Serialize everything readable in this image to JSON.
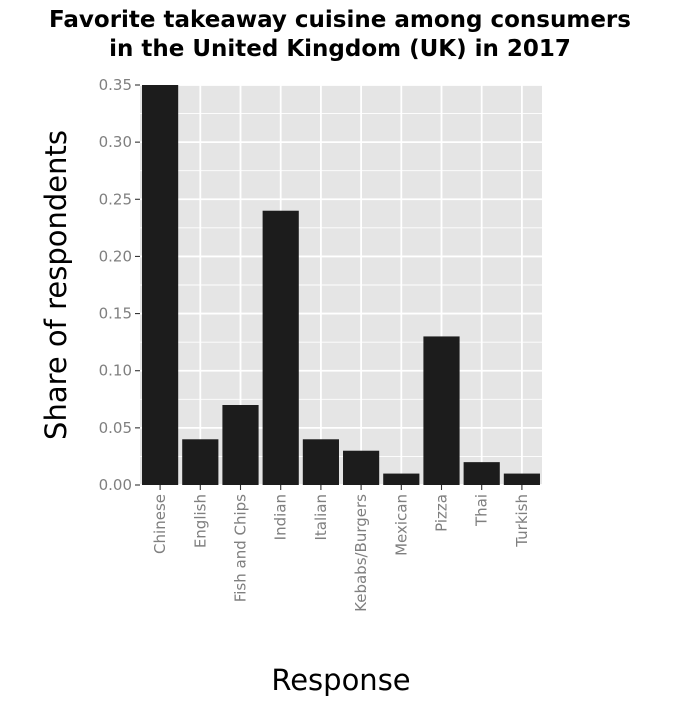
{
  "chart_data": {
    "type": "bar",
    "title_lines": [
      "Favorite takeaway cuisine among consumers",
      "in the United Kingdom (UK) in 2017"
    ],
    "xlabel": "Response",
    "ylabel": "Share of respondents",
    "categories": [
      "Chinese",
      "English",
      "Fish and Chips",
      "Indian",
      "Italian",
      "Kebabs/Burgers",
      "Mexican",
      "Pizza",
      "Thai",
      "Turkish"
    ],
    "values": [
      0.35,
      0.04,
      0.07,
      0.24,
      0.04,
      0.03,
      0.01,
      0.13,
      0.02,
      0.01
    ],
    "ylim": [
      0,
      0.35
    ],
    "yticks": [
      "0.00",
      "0.05",
      "0.10",
      "0.15",
      "0.20",
      "0.25",
      "0.30",
      "0.35"
    ],
    "grid": true,
    "colors": {
      "bar": "#1c1c1c",
      "panel": "#e5e5e5",
      "grid": "#ffffff",
      "tick_text": "#7f7f7f"
    }
  }
}
